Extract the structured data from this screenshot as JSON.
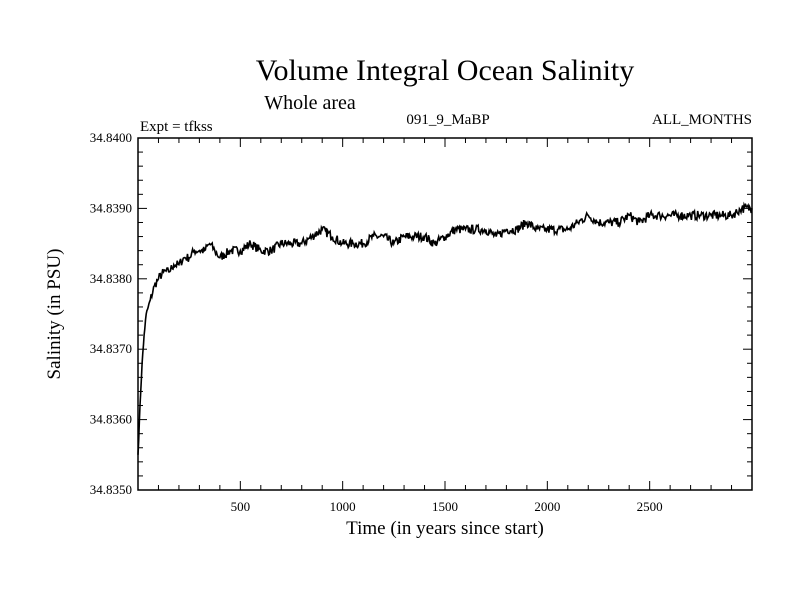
{
  "chart_data": {
    "type": "line",
    "title": "Volume Integral Ocean Salinity",
    "subtitle": "Whole area",
    "experiment": "Expt = tfkss",
    "run_label": "091_9_MaBP",
    "months_label": "ALL_MONTHS",
    "xlabel": "Time (in years since start)",
    "ylabel": "Salinity (in PSU)",
    "xlim": [
      0,
      3000
    ],
    "ylim": [
      34.835,
      34.84
    ],
    "x_ticks": [
      500,
      1000,
      1500,
      2000,
      2500
    ],
    "x_tick_labels": [
      "500",
      "1000",
      "1500",
      "2000",
      "2500"
    ],
    "y_ticks": [
      34.835,
      34.836,
      34.837,
      34.838,
      34.839,
      34.84
    ],
    "y_tick_labels": [
      "34.8350",
      "34.8360",
      "34.8370",
      "34.8380",
      "34.8390",
      "34.8400"
    ],
    "grid": false,
    "series": [
      {
        "name": "Salinity",
        "color": "#000000",
        "x": [
          0,
          10,
          20,
          30,
          40,
          50,
          60,
          80,
          100,
          125,
          150,
          175,
          200,
          225,
          250,
          275,
          300,
          325,
          350,
          375,
          400,
          450,
          500,
          550,
          600,
          650,
          700,
          750,
          800,
          850,
          900,
          950,
          1000,
          1050,
          1100,
          1150,
          1200,
          1250,
          1300,
          1350,
          1400,
          1450,
          1500,
          1550,
          1600,
          1650,
          1700,
          1750,
          1800,
          1850,
          1900,
          1950,
          2000,
          2050,
          2100,
          2150,
          2200,
          2250,
          2300,
          2350,
          2400,
          2450,
          2500,
          2550,
          2600,
          2650,
          2700,
          2750,
          2800,
          2850,
          2900,
          2950,
          3000
        ],
        "values": [
          34.8355,
          34.8362,
          34.8368,
          34.8372,
          34.8375,
          34.8376,
          34.8377,
          34.8379,
          34.838,
          34.8381,
          34.8381,
          34.8382,
          34.8382,
          34.8383,
          34.8383,
          34.8384,
          34.8384,
          34.8384,
          34.8385,
          34.8384,
          34.8383,
          34.8384,
          34.8384,
          34.8385,
          34.8384,
          34.8384,
          34.8385,
          34.8385,
          34.8385,
          34.8386,
          34.8387,
          34.8386,
          34.8385,
          34.8385,
          34.8385,
          34.8386,
          34.8386,
          34.8385,
          34.8386,
          34.8386,
          34.8386,
          34.8385,
          34.8386,
          34.8387,
          34.8387,
          34.8387,
          34.8387,
          34.8386,
          34.8387,
          34.8387,
          34.8388,
          34.8387,
          34.8387,
          34.8387,
          34.8387,
          34.8388,
          34.8389,
          34.8388,
          34.8388,
          34.8388,
          34.8389,
          34.8388,
          34.8389,
          34.8389,
          34.8389,
          34.8389,
          34.8389,
          34.8389,
          34.8389,
          34.8389,
          34.8389,
          34.839,
          34.839
        ]
      }
    ]
  }
}
